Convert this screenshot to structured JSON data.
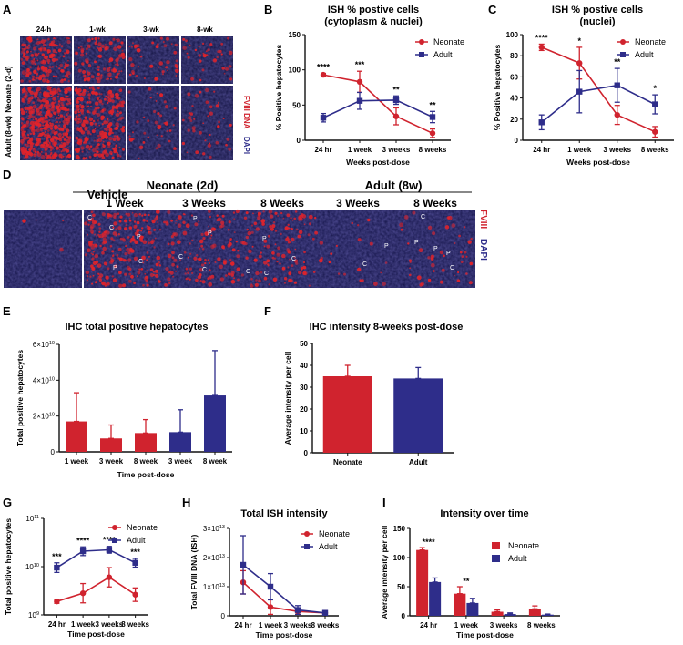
{
  "colors": {
    "neonate": "#d0232e",
    "adult": "#2e2d8a",
    "fviii": "#d0232e",
    "dapi": "#2e2d8a"
  },
  "panel_letters": [
    "A",
    "B",
    "C",
    "D",
    "E",
    "F",
    "G",
    "H",
    "I"
  ],
  "panel_a": {
    "timepoints": [
      "24-h",
      "1-wk",
      "3-wk",
      "8-wk"
    ],
    "rows": [
      "Neonate (2-d)",
      "Adult (8-wk)"
    ],
    "stain_fviii": "FVIII DNA",
    "stain_dapi": "DAPI"
  },
  "panel_d": {
    "vehicle_label": "Vehicle",
    "group_neonate": "Neonate (2d)",
    "group_adult": "Adult (8w)",
    "columns": [
      "1 Week",
      "3 Weeks",
      "8 Weeks",
      "3 Weeks",
      "8 Weeks"
    ],
    "stain_fviii": "FVIII",
    "stain_dapi": "DAPI",
    "markers": [
      "C",
      "P"
    ]
  },
  "chart_data": [
    {
      "id": "B",
      "type": "line",
      "title": "ISH % postive cells",
      "subtitle": "(cytoplasm & nuclei)",
      "categories": [
        "24 hr",
        "1 week",
        "3 weeks",
        "8 weeks"
      ],
      "xlabel": "Weeks post-dose",
      "ylabel": "% Positive hepatocytes",
      "ylim": [
        0,
        150
      ],
      "yticks": [
        "0",
        "50",
        "100",
        "150"
      ],
      "series": [
        {
          "name": "Neonate",
          "values": [
            93,
            83,
            34,
            10
          ],
          "err": [
            2,
            15,
            12,
            6
          ]
        },
        {
          "name": "Adult",
          "values": [
            32,
            56,
            57,
            33
          ],
          "err": [
            6,
            12,
            6,
            8
          ]
        }
      ],
      "significance": [
        "****",
        "***",
        "**",
        "**"
      ],
      "legend": "top-right"
    },
    {
      "id": "C",
      "type": "line",
      "title": "ISH % postive cells",
      "subtitle": "(nuclei)",
      "categories": [
        "24 hr",
        "1 week",
        "3 weeks",
        "8 weeks"
      ],
      "xlabel": "Weeks post-dose",
      "ylabel": "% Positive hepatocytes",
      "ylim": [
        0,
        100
      ],
      "yticks": [
        "0",
        "20",
        "40",
        "60",
        "80",
        "100"
      ],
      "series": [
        {
          "name": "Neonate",
          "values": [
            88,
            73,
            24,
            8
          ],
          "err": [
            3,
            15,
            9,
            5
          ]
        },
        {
          "name": "Adult",
          "values": [
            17,
            46,
            52,
            34
          ],
          "err": [
            7,
            20,
            16,
            9
          ]
        }
      ],
      "significance": [
        "****",
        "*",
        "**",
        "*"
      ],
      "legend": "top-right"
    },
    {
      "id": "E",
      "type": "bar",
      "title": "IHC total positive hepatocytes",
      "categories": [
        "1 week",
        "3 week",
        "8 week",
        "3 week",
        "8 week"
      ],
      "groups": [
        "Neonate",
        "Neonate",
        "Neonate",
        "Adult",
        "Adult"
      ],
      "values": [
        1.7,
        0.75,
        1.05,
        1.1,
        3.15
      ],
      "err": [
        1.6,
        0.75,
        0.75,
        1.25,
        2.5
      ],
      "xlabel": "Time post-dose",
      "ylabel": "Total positive hepatocytes",
      "ylim": [
        0,
        6
      ],
      "yticks": [
        "0",
        "2×10",
        "4×10",
        "6×10"
      ],
      "ytick_exp": "10"
    },
    {
      "id": "F",
      "type": "bar",
      "title": "IHC intensity 8-weeks post-dose",
      "categories": [
        "Neonate",
        "Adult"
      ],
      "values": [
        35,
        34
      ],
      "err": [
        5,
        5
      ],
      "ylabel": "Average intensity per cell",
      "ylim": [
        0,
        50
      ],
      "yticks": [
        "0",
        "10",
        "20",
        "30",
        "40",
        "50"
      ]
    },
    {
      "id": "G",
      "type": "line",
      "title": "",
      "categories": [
        "24 hr",
        "1 week",
        "3 weeks",
        "8 weeks"
      ],
      "xlabel": "Time post-dose",
      "ylabel": "Total positive hepatocytes",
      "yscale": "log",
      "ylim": [
        9,
        11
      ],
      "yticks": [
        "10",
        "10",
        "10"
      ],
      "ytick_exps": [
        "9",
        "10",
        "11"
      ],
      "series": [
        {
          "name": "Neonate",
          "log_values": [
            9.28,
            9.45,
            9.78,
            9.42
          ],
          "err": [
            0.04,
            0.2,
            0.2,
            0.14
          ]
        },
        {
          "name": "Adult",
          "log_values": [
            9.98,
            10.32,
            10.35,
            10.08
          ],
          "err": [
            0.1,
            0.09,
            0.07,
            0.09
          ]
        }
      ],
      "significance": [
        "***",
        "****",
        "****",
        "***"
      ],
      "legend": "top-right"
    },
    {
      "id": "H",
      "type": "line",
      "title": "Total ISH intensity",
      "categories": [
        "24 hr",
        "1 week",
        "3 weeks",
        "8 weeks"
      ],
      "xlabel": "Time post-dose",
      "ylabel": "Total FVIII DNA (ISH)",
      "ylim": [
        0,
        3
      ],
      "yticks": [
        "0",
        "1×10",
        "2×10",
        "3×10"
      ],
      "ytick_exp": "13",
      "series": [
        {
          "name": "Neonate",
          "values": [
            1.15,
            0.3,
            0.15,
            0.1
          ],
          "err": [
            0.4,
            0.25,
            0.1,
            0.08
          ]
        },
        {
          "name": "Adult",
          "values": [
            1.75,
            1.0,
            0.2,
            0.1
          ],
          "err": [
            1.0,
            0.45,
            0.15,
            0.08
          ]
        }
      ],
      "legend": "top-right"
    },
    {
      "id": "I",
      "type": "bar",
      "title": "Intensity over time",
      "categories": [
        "24 hr",
        "1 week",
        "3 weeks",
        "8 weeks"
      ],
      "xlabel": "Time post-dose",
      "ylabel": "Average intensity per cell",
      "ylim": [
        0,
        150
      ],
      "yticks": [
        "0",
        "50",
        "100",
        "150"
      ],
      "series": [
        {
          "name": "Neonate",
          "values": [
            113,
            38,
            7,
            12
          ],
          "err": [
            4,
            12,
            3,
            5
          ]
        },
        {
          "name": "Adult",
          "values": [
            58,
            22,
            3,
            2
          ],
          "err": [
            7,
            8,
            2,
            1
          ]
        }
      ],
      "significance": [
        "****",
        "**",
        "",
        ""
      ],
      "legend": "top-right"
    }
  ]
}
